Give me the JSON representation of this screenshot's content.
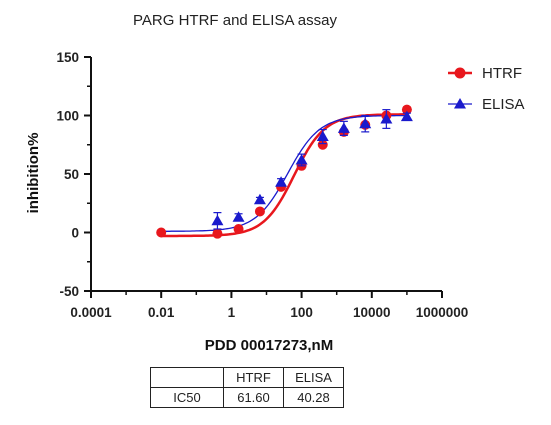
{
  "chart_data": {
    "type": "scatter",
    "title": "PARG HTRF and ELISA assay",
    "xlabel": "PDD 00017273,nM",
    "ylabel": "inhibition%",
    "xscale": "log",
    "xlim": [
      0.0001,
      1000000
    ],
    "ylim": [
      -50,
      150
    ],
    "x_ticks": [
      "0.0001",
      "0.01",
      "1",
      "100",
      "10000",
      "1000000"
    ],
    "y_ticks": [
      "-50",
      "0",
      "50",
      "100",
      "150"
    ],
    "grid": false,
    "legend_position": "top-right",
    "series": [
      {
        "name": "HTRF",
        "color": "#e8171d",
        "marker": "circle",
        "x": [
          0.01,
          0.4,
          1.6,
          6.5,
          26,
          100,
          400,
          1600,
          6500,
          26000,
          100000
        ],
        "y": [
          0,
          -1,
          3,
          18,
          39,
          57,
          75,
          86,
          92,
          100,
          105
        ],
        "fit": {
          "bottom": -3,
          "top": 101,
          "logIC50": 1.79,
          "hill": 1.0
        }
      },
      {
        "name": "ELISA",
        "color": "#1a1acc",
        "marker": "triangle",
        "x": [
          0.4,
          1.6,
          6.5,
          26,
          100,
          400,
          1600,
          6500,
          26000,
          100000
        ],
        "y": [
          10,
          13,
          28,
          43,
          62,
          82,
          89,
          93,
          97,
          99
        ],
        "err": [
          7,
          3,
          2,
          3,
          5,
          6,
          6,
          7,
          8,
          3
        ],
        "fit": {
          "bottom": 1,
          "top": 100,
          "logIC50": 1.605,
          "hill": 0.95
        }
      }
    ]
  },
  "table": {
    "header": [
      "",
      "HTRF",
      "ELISA"
    ],
    "rows": [
      [
        "IC50",
        "61.60",
        "40.28"
      ]
    ]
  }
}
